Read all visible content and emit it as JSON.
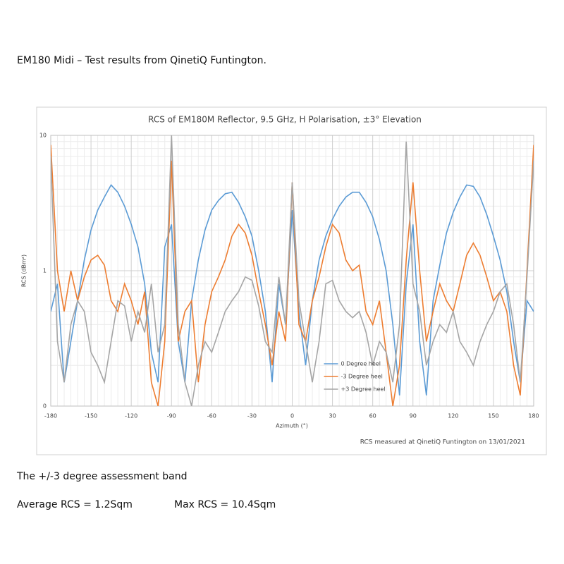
{
  "document": {
    "heading": "EM180 Midi – Test results from QinetiQ Funtington.",
    "band_title": "The +/-3 degree assessment band",
    "average": "Average RCS = 1.2Sqm",
    "max": "Max RCS = 10.4Sqm"
  },
  "chart_data": {
    "type": "line",
    "title": "RCS of EM180M Reflector, 9.5 GHz, H Polarisation, ±3° Elevation",
    "y_label": "RCS (dBm²)",
    "x_label": "Azimuth (°)",
    "annotation": "RCS measured at QinetiQ Funtington on 13/01/2021",
    "log_scale_y": true,
    "grid": true,
    "legend": "lower center",
    "xlim": [
      -180,
      180
    ],
    "xticks": [
      -180,
      -150,
      -120,
      -90,
      -60,
      -30,
      0,
      30,
      60,
      90,
      120,
      150,
      180
    ],
    "ylim": [
      0.1,
      10
    ],
    "yticks": [
      {
        "value": 0.1,
        "label": "0"
      },
      1,
      10
    ],
    "x": [
      -180,
      -175,
      -170,
      -165,
      -160,
      -155,
      -150,
      -145,
      -140,
      -135,
      -130,
      -125,
      -120,
      -115,
      -110,
      -105,
      -100,
      -95,
      -90,
      -85,
      -80,
      -75,
      -70,
      -65,
      -60,
      -55,
      -50,
      -45,
      -40,
      -35,
      -30,
      -25,
      -20,
      -15,
      -10,
      -5,
      0,
      5,
      10,
      15,
      20,
      25,
      30,
      35,
      40,
      45,
      50,
      55,
      60,
      65,
      70,
      75,
      80,
      85,
      90,
      95,
      100,
      105,
      110,
      115,
      120,
      125,
      130,
      135,
      140,
      145,
      150,
      155,
      160,
      165,
      170,
      175,
      180
    ],
    "series": [
      {
        "name": "0 Degree heel",
        "color": "#5b9bd5",
        "values": [
          0.5,
          0.8,
          0.15,
          0.3,
          0.6,
          1.2,
          2.0,
          2.8,
          3.5,
          4.3,
          3.8,
          3.0,
          2.2,
          1.5,
          0.8,
          0.25,
          0.15,
          1.5,
          2.2,
          0.3,
          0.15,
          0.6,
          1.2,
          2.0,
          2.8,
          3.3,
          3.7,
          3.8,
          3.2,
          2.5,
          1.8,
          1.0,
          0.5,
          0.15,
          0.8,
          0.4,
          2.8,
          0.5,
          0.2,
          0.6,
          1.2,
          1.8,
          2.4,
          3.0,
          3.5,
          3.8,
          3.8,
          3.2,
          2.5,
          1.7,
          1.0,
          0.4,
          0.12,
          0.8,
          2.2,
          0.3,
          0.12,
          0.6,
          1.1,
          1.9,
          2.7,
          3.5,
          4.3,
          4.2,
          3.5,
          2.6,
          1.8,
          1.2,
          0.7,
          0.3,
          0.15,
          0.6,
          0.5
        ]
      },
      {
        "name": "-3 Degree heel",
        "color": "#ed7d31",
        "values": [
          8.5,
          1.0,
          0.5,
          1.0,
          0.6,
          0.9,
          1.2,
          1.3,
          1.1,
          0.6,
          0.5,
          0.8,
          0.6,
          0.4,
          0.7,
          0.15,
          0.1,
          0.3,
          6.5,
          0.3,
          0.5,
          0.6,
          0.15,
          0.4,
          0.7,
          0.9,
          1.2,
          1.8,
          2.2,
          1.9,
          1.3,
          0.7,
          0.4,
          0.2,
          0.5,
          0.3,
          4.5,
          0.4,
          0.3,
          0.6,
          0.9,
          1.5,
          2.2,
          1.9,
          1.2,
          1.0,
          1.1,
          0.5,
          0.4,
          0.6,
          0.25,
          0.1,
          0.2,
          1.2,
          4.5,
          1.0,
          0.3,
          0.5,
          0.8,
          0.6,
          0.5,
          0.8,
          1.3,
          1.6,
          1.3,
          0.9,
          0.6,
          0.7,
          0.5,
          0.2,
          0.12,
          1.0,
          8.5
        ]
      },
      {
        "name": "+3 Degree heel",
        "color": "#a5a5a5",
        "values": [
          7.0,
          0.3,
          0.15,
          0.4,
          0.6,
          0.5,
          0.25,
          0.2,
          0.15,
          0.3,
          0.6,
          0.55,
          0.3,
          0.5,
          0.35,
          0.8,
          0.25,
          0.4,
          10,
          0.4,
          0.15,
          0.1,
          0.2,
          0.3,
          0.25,
          0.35,
          0.5,
          0.6,
          0.7,
          0.9,
          0.85,
          0.55,
          0.3,
          0.25,
          0.9,
          0.4,
          4.5,
          0.6,
          0.3,
          0.15,
          0.3,
          0.8,
          0.85,
          0.6,
          0.5,
          0.45,
          0.5,
          0.35,
          0.2,
          0.3,
          0.25,
          0.15,
          0.4,
          9.0,
          0.8,
          0.5,
          0.2,
          0.3,
          0.4,
          0.35,
          0.5,
          0.3,
          0.25,
          0.2,
          0.3,
          0.4,
          0.5,
          0.7,
          0.8,
          0.4,
          0.15,
          0.9,
          6.5
        ]
      }
    ]
  }
}
